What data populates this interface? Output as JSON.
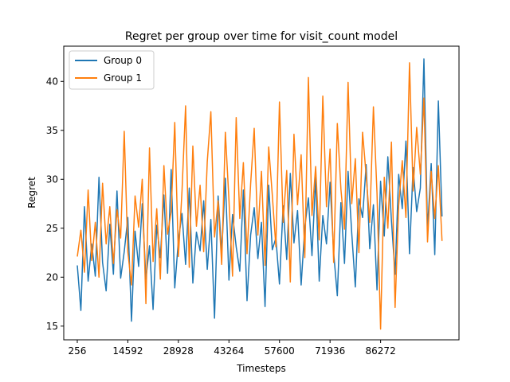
{
  "chart_data": {
    "type": "line",
    "title": "Regret per group over time for visit_count model",
    "xlabel": "Timesteps",
    "ylabel": "Regret",
    "xlim": [
      -3580,
      108500
    ],
    "ylim": [
      13.6,
      43.6
    ],
    "xticks": [
      256,
      14592,
      28928,
      43264,
      57600,
      71936,
      86272
    ],
    "yticks": [
      15,
      20,
      25,
      30,
      35,
      40
    ],
    "grid": false,
    "legend_position": "upper left",
    "series": [
      {
        "name": "Group 0",
        "color": "#1f77b4",
        "x": [
          256,
          1280,
          2304,
          3328,
          4352,
          5376,
          6400,
          7424,
          8448,
          9472,
          10496,
          11520,
          12544,
          13568,
          14592,
          15616,
          16640,
          17664,
          18688,
          19712,
          20736,
          21760,
          22784,
          23808,
          24832,
          25856,
          26880,
          27904,
          28928,
          29952,
          30976,
          32000,
          33024,
          34048,
          35072,
          36096,
          37120,
          38144,
          39168,
          40192,
          41216,
          42240,
          43264,
          44288,
          45312,
          46336,
          47360,
          48384,
          49408,
          50432,
          51456,
          52480,
          53504,
          54528,
          55552,
          56576,
          57600,
          58624,
          59648,
          60672,
          61696,
          62720,
          63744,
          64768,
          65792,
          66816,
          67840,
          68864,
          69888,
          70912,
          71936,
          72960,
          73984,
          75008,
          76032,
          77056,
          78080,
          79104,
          80128,
          81152,
          82176,
          83200,
          84224,
          85248,
          86272,
          87296,
          88320,
          89344,
          90368,
          91392,
          92416,
          93440,
          94464,
          95488,
          96512,
          97536,
          98560,
          99584,
          100608,
          101632,
          102656,
          103680
        ],
        "values": [
          21.2,
          16.6,
          27.2,
          19.6,
          23.4,
          20.1,
          30.2,
          21.5,
          18.6,
          25.4,
          20.3,
          28.8,
          19.9,
          22.6,
          26.1,
          15.5,
          24.7,
          21.1,
          27.5,
          19.8,
          23.2,
          16.7,
          25.3,
          22.0,
          28.4,
          20.4,
          31.0,
          18.9,
          23.8,
          26.5,
          21.3,
          29.1,
          19.4,
          24.6,
          22.7,
          27.8,
          20.8,
          25.9,
          15.8,
          28.3,
          22.5,
          30.1,
          19.7,
          26.4,
          23.1,
          20.6,
          28.9,
          17.6,
          24.3,
          27.1,
          21.9,
          25.6,
          17.0,
          29.4,
          22.8,
          24.0,
          19.3,
          27.3,
          21.8,
          30.6,
          23.5,
          26.8,
          19.2,
          25.1,
          28.1,
          22.2,
          30.2,
          19.6,
          26.3,
          23.4,
          29.7,
          22.5,
          18.1,
          27.6,
          21.4,
          30.8,
          24.5,
          19.0,
          28.0,
          26.1,
          31.5,
          22.9,
          27.4,
          18.7,
          29.8,
          24.2,
          32.3,
          25.8,
          20.3,
          30.5,
          27.0,
          33.9,
          22.4,
          31.2,
          26.7,
          29.1,
          42.3,
          24.8,
          31.6,
          22.3,
          38.0,
          26.2
        ]
      },
      {
        "name": "Group 1",
        "color": "#ff7f0e",
        "x": [
          256,
          1280,
          2304,
          3328,
          4352,
          5376,
          6400,
          7424,
          8448,
          9472,
          10496,
          11520,
          12544,
          13568,
          14592,
          15616,
          16640,
          17664,
          18688,
          19712,
          20736,
          21760,
          22784,
          23808,
          24832,
          25856,
          26880,
          27904,
          28928,
          29952,
          30976,
          32000,
          33024,
          34048,
          35072,
          36096,
          37120,
          38144,
          39168,
          40192,
          41216,
          42240,
          43264,
          44288,
          45312,
          46336,
          47360,
          48384,
          49408,
          50432,
          51456,
          52480,
          53504,
          54528,
          55552,
          56576,
          57600,
          58624,
          59648,
          60672,
          61696,
          62720,
          63744,
          64768,
          65792,
          66816,
          67840,
          68864,
          69888,
          70912,
          71936,
          72960,
          73984,
          75008,
          76032,
          77056,
          78080,
          79104,
          80128,
          81152,
          82176,
          83200,
          84224,
          85248,
          86272,
          87296,
          88320,
          89344,
          90368,
          91392,
          92416,
          93440,
          94464,
          95488,
          96512,
          97536,
          98560,
          99584,
          100608,
          101632,
          102656,
          103680
        ],
        "values": [
          22.1,
          24.8,
          20.5,
          28.9,
          21.7,
          25.6,
          20.0,
          29.6,
          23.4,
          27.2,
          21.4,
          26.9,
          24.0,
          34.9,
          22.6,
          19.2,
          28.3,
          25.1,
          30.0,
          17.3,
          33.2,
          21.6,
          27.0,
          19.8,
          31.4,
          24.4,
          26.7,
          35.8,
          22.1,
          28.8,
          37.5,
          21.0,
          33.4,
          25.2,
          29.4,
          22.6,
          31.8,
          36.9,
          24.1,
          27.8,
          21.3,
          34.8,
          27.9,
          20.1,
          36.3,
          26.0,
          31.7,
          22.4,
          29.5,
          35.2,
          24.3,
          30.8,
          21.2,
          33.3,
          28.4,
          23.1,
          37.9,
          25.6,
          30.9,
          19.5,
          34.6,
          27.4,
          32.5,
          22.0,
          40.4,
          26.3,
          31.3,
          23.8,
          38.5,
          27.2,
          33.1,
          21.5,
          35.7,
          29.0,
          24.9,
          39.9,
          27.5,
          32.1,
          22.5,
          34.8,
          30.4,
          25.6,
          37.4,
          28.6,
          14.7,
          30.2,
          25.0,
          33.8,
          16.9,
          27.3,
          31.9,
          26.1,
          41.9,
          28.8,
          35.3,
          30.5,
          38.3,
          23.6,
          30.8,
          26.0,
          31.4,
          23.7
        ]
      }
    ]
  }
}
